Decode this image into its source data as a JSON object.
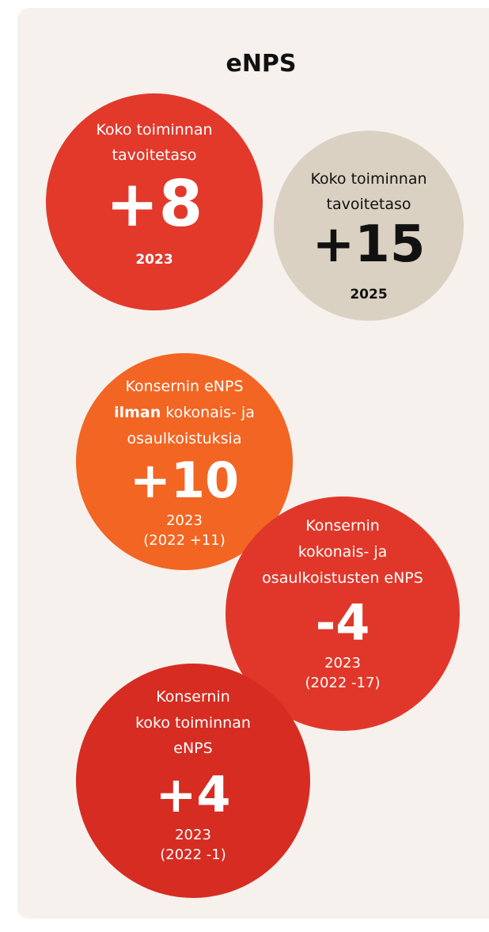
{
  "title": "eNPS",
  "circles": [
    {
      "label_lines": [
        "Koko toiminnan",
        "tavoitetaso"
      ],
      "value": "+8",
      "year": "2023",
      "notes": []
    },
    {
      "label_lines": [
        "Koko toiminnan",
        "tavoitetaso"
      ],
      "value": "+15",
      "year": "2025",
      "notes": []
    },
    {
      "label_lines": [
        "Konsernin eNPS",
        {
          "bold": "ilman",
          "rest": "kokonais- ja"
        },
        "osaulkoistuksia"
      ],
      "value": "+10",
      "year": "2023",
      "notes": [
        "(2022 +11)"
      ]
    },
    {
      "label_lines": [
        "Konsernin",
        "kokonais- ja",
        "osaulkoistusten eNPS"
      ],
      "value": "-4",
      "year": "2023",
      "notes": [
        "(2022 -17)"
      ]
    },
    {
      "label_lines": [
        "Konsernin",
        "koko toiminnan",
        "eNPS"
      ],
      "value": "+4",
      "year": "2023",
      "notes": [
        "(2022 -1)"
      ]
    }
  ]
}
